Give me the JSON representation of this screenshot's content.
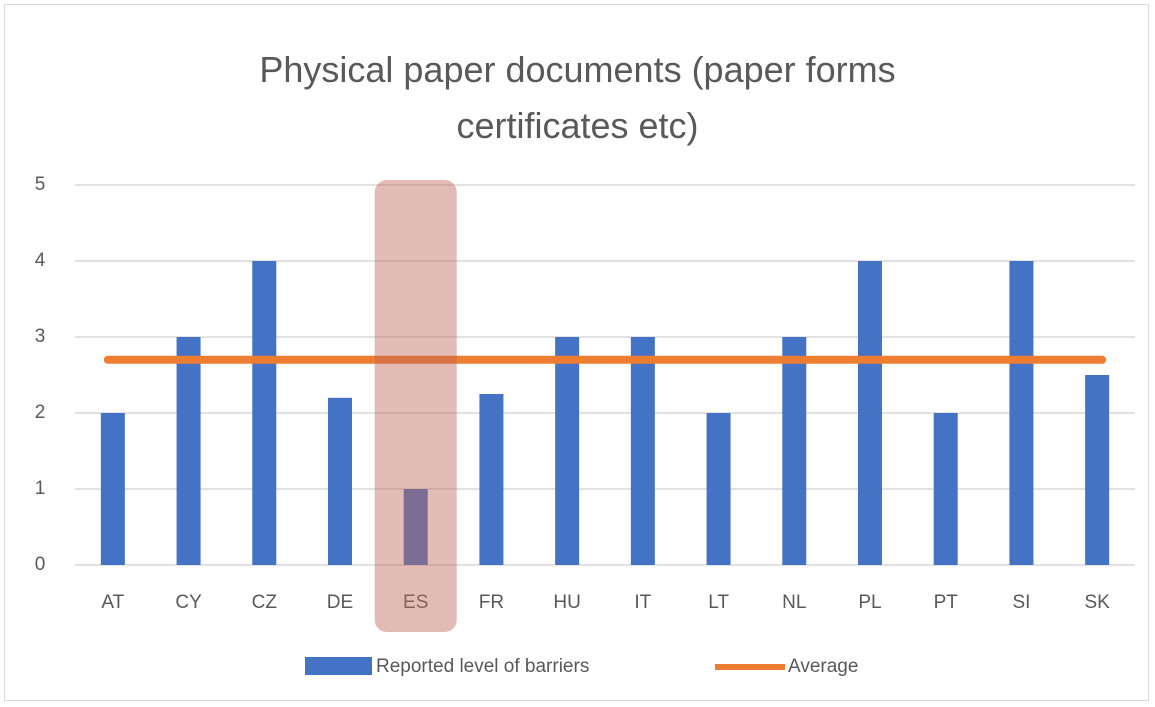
{
  "chart_data": {
    "type": "bar",
    "title": "Physical paper documents (paper forms certificates etc)",
    "categories": [
      "AT",
      "CY",
      "CZ",
      "DE",
      "ES",
      "FR",
      "HU",
      "IT",
      "LT",
      "NL",
      "PL",
      "PT",
      "SI",
      "SK"
    ],
    "series": [
      {
        "name": "Reported level of barriers",
        "color": "#4472c4",
        "values": [
          2,
          3,
          4,
          2.2,
          1,
          2.25,
          3,
          3,
          2,
          3,
          4,
          2,
          4,
          2.5
        ]
      }
    ],
    "average": {
      "name": "Average",
      "color": "#ed7d31",
      "value": 2.7
    },
    "highlight_index": 4,
    "highlight_color": "#c0695a",
    "ylim": [
      0,
      5
    ],
    "yticks": [
      0,
      1,
      2,
      3,
      4,
      5
    ],
    "grid": true,
    "legend": "bottom"
  }
}
